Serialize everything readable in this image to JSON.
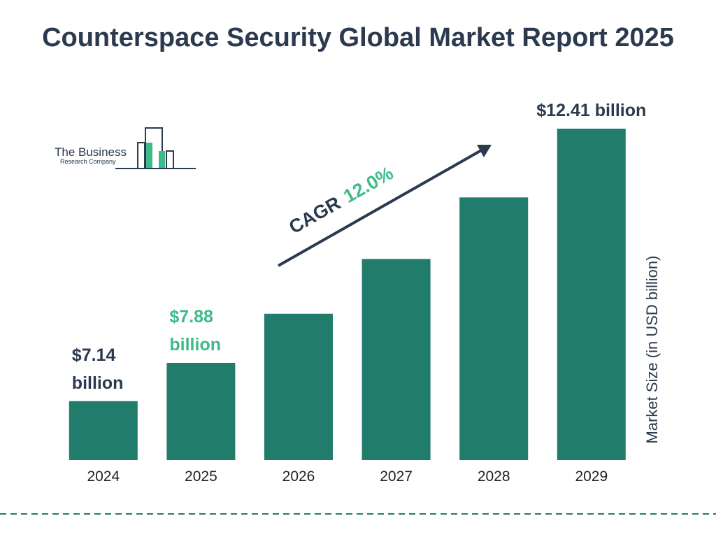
{
  "chart_data": {
    "type": "bar",
    "title": "Counterspace Security Global Market Report 2025",
    "categories": [
      "2024",
      "2025",
      "2026",
      "2027",
      "2028",
      "2029"
    ],
    "values": [
      7.14,
      7.88,
      8.83,
      9.89,
      11.08,
      12.41
    ],
    "value_labels": [
      "$7.14 billion",
      "$7.88 billion",
      null,
      null,
      null,
      "$12.41 billion"
    ],
    "value_label_colors": [
      "#2b3a4e",
      "#3dbb8a",
      null,
      null,
      null,
      "#2b3a4e"
    ],
    "color": "#217c6c",
    "ylabel": "Market Size (in USD billion)",
    "ylim": [
      6,
      12.41
    ],
    "annotations": {
      "cagr_label": "CAGR",
      "cagr_value": "12.0%"
    }
  },
  "logo": {
    "line1": "The Business",
    "line2": "Research Company"
  }
}
